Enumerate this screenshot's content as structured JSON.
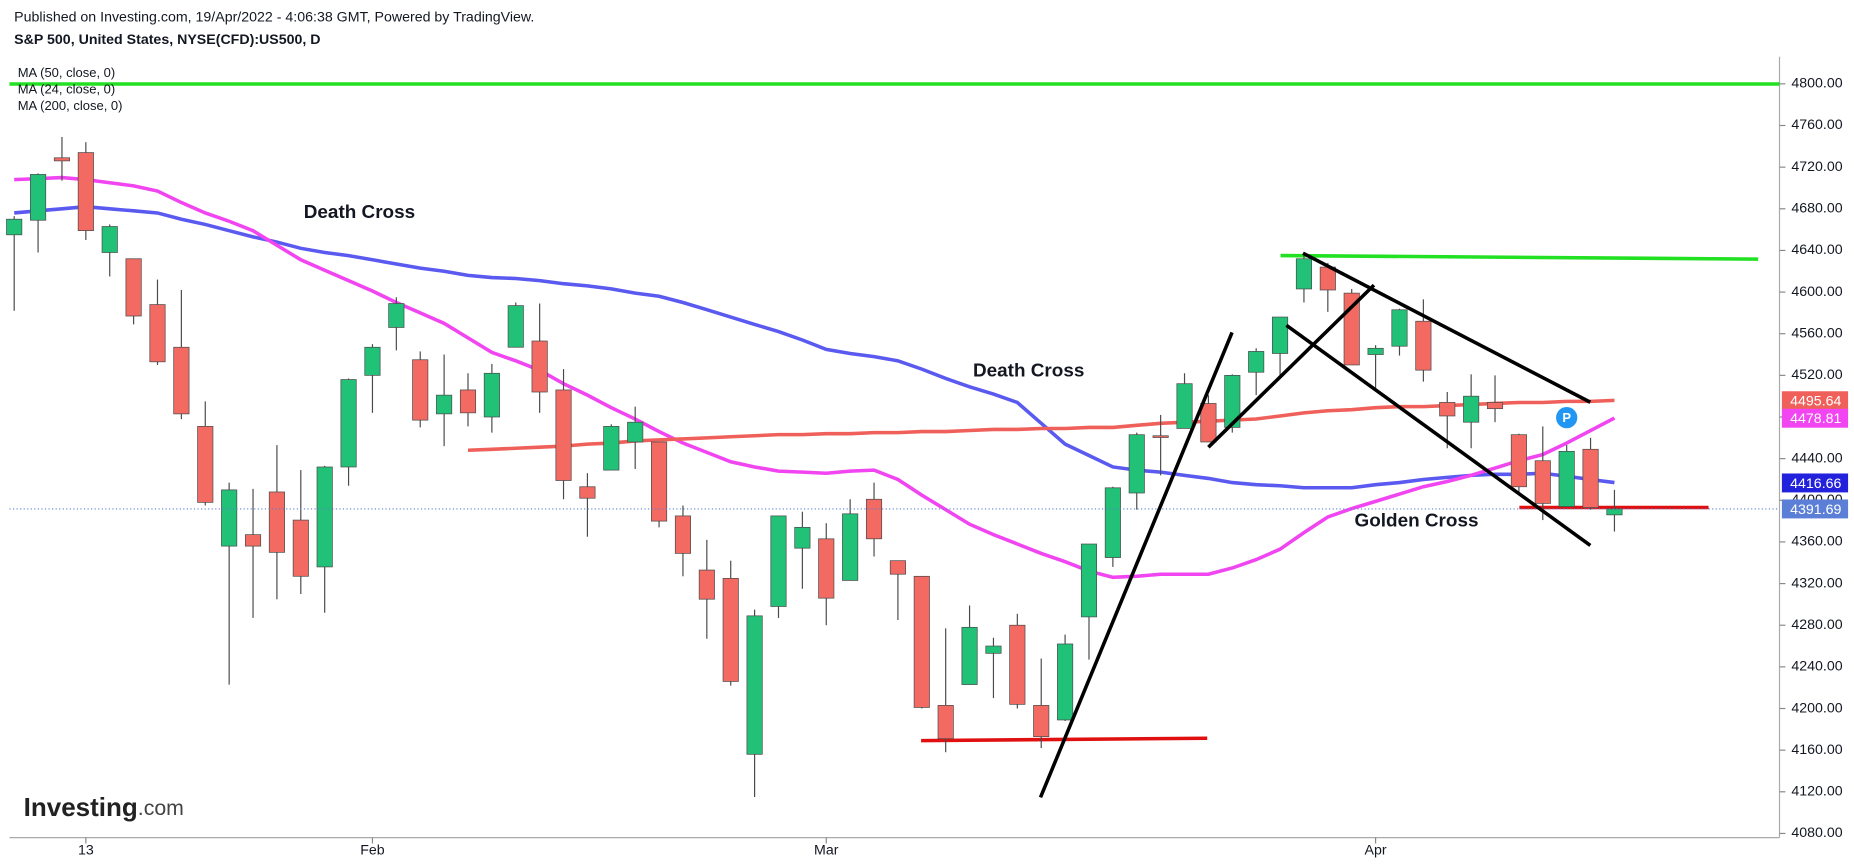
{
  "chart_data": {
    "type": "candlestick",
    "header": {
      "published": "Published on Investing.com, 19/Apr/2022 - 4:06:38 GMT, Powered by TradingView.",
      "symbol": "S&P 500, United States, NYSE(CFD):US500, D"
    },
    "watermark": [
      "Investing",
      ".com"
    ],
    "categories": [
      null,
      null,
      null,
      "13",
      null,
      null,
      null,
      null,
      null,
      null,
      null,
      null,
      null,
      null,
      null,
      "Feb",
      null,
      null,
      null,
      null,
      null,
      null,
      null,
      null,
      null,
      null,
      null,
      null,
      null,
      null,
      null,
      null,
      null,
      null,
      "Mar",
      null,
      null,
      null,
      null,
      null,
      null,
      null,
      null,
      null,
      null,
      null,
      null,
      null,
      null,
      null,
      null,
      null,
      null,
      null,
      null,
      null,
      null,
      "Apr",
      null,
      null,
      null,
      null,
      null,
      null,
      null,
      null,
      null,
      null
    ],
    "open": [
      4655,
      4669,
      4729,
      4734,
      4638,
      4632,
      4588,
      4547,
      4471,
      4356,
      4367,
      4408,
      4381,
      4336,
      4432,
      4520,
      4566,
      4535,
      4483,
      4506,
      4480,
      4547,
      4553,
      4506,
      4413,
      4429,
      4456,
      4456,
      4385,
      4333,
      4325,
      4156,
      4298,
      4354,
      4363,
      4323,
      4401,
      4342,
      4327,
      4203,
      4223,
      4253,
      4280,
      4203,
      4189,
      4288,
      4345,
      4407,
      4462,
      4469,
      4493,
      4470,
      4523,
      4541,
      4603,
      4624,
      4599,
      4540,
      4548,
      4572,
      4494,
      4475,
      4494,
      4463,
      4438,
      4394,
      4449,
      4386
    ],
    "high": [
      4673,
      4714,
      4749,
      4744,
      4665,
      4632,
      4612,
      4602,
      4495,
      4417,
      4411,
      4453,
      4429,
      4433,
      4517,
      4550,
      4595,
      4543,
      4540,
      4522,
      4531,
      4590,
      4589,
      4526,
      4426,
      4473,
      4490,
      4456,
      4395,
      4362,
      4342,
      4295,
      4385,
      4389,
      4378,
      4401,
      4417,
      4342,
      4327,
      4277,
      4299,
      4268,
      4291,
      4248,
      4271,
      4358,
      4413,
      4465,
      4482,
      4522,
      4501,
      4521,
      4546,
      4576,
      4637,
      4628,
      4603,
      4549,
      4584,
      4593,
      4504,
      4521,
      4520,
      4464,
      4471,
      4453,
      4460,
      4410
    ],
    "low": [
      4582,
      4638,
      4707,
      4650,
      4615,
      4569,
      4530,
      4478,
      4395,
      4223,
      4287,
      4305,
      4310,
      4292,
      4414,
      4484,
      4544,
      4470,
      4452,
      4471,
      4465,
      4547,
      4484,
      4401,
      4365,
      4429,
      4430,
      4374,
      4327,
      4267,
      4222,
      4115,
      4287,
      4315,
      4280,
      4323,
      4346,
      4285,
      4200,
      4158,
      4223,
      4210,
      4200,
      4162,
      4188,
      4247,
      4336,
      4391,
      4424,
      4469,
      4456,
      4465,
      4501,
      4518,
      4590,
      4581,
      4530,
      4508,
      4539,
      4514,
      4450,
      4450,
      4475,
      4408,
      4381,
      4394,
      4391,
      4370
    ],
    "close": [
      4670,
      4713,
      4726,
      4659,
      4663,
      4577,
      4533,
      4483,
      4398,
      4410,
      4356,
      4350,
      4327,
      4432,
      4516,
      4547,
      4589,
      4477,
      4501,
      4484,
      4522,
      4587,
      4504,
      4419,
      4402,
      4471,
      4475,
      4380,
      4349,
      4305,
      4226,
      4289,
      4385,
      4374,
      4306,
      4387,
      4363,
      4329,
      4201,
      4171,
      4278,
      4260,
      4204,
      4173,
      4262,
      4358,
      4412,
      4463,
      4461,
      4512,
      4456,
      4520,
      4543,
      4576,
      4632,
      4602,
      4530,
      4546,
      4583,
      4525,
      4481,
      4500,
      4488,
      4413,
      4397,
      4447,
      4393,
      4391.69
    ],
    "up_color": "#22c178",
    "down_color": "#f26a62",
    "wick_color": "#4a4a4a",
    "overlays": [
      {
        "name": "MA (50, close, 0)",
        "color": "#5a5af0",
        "values": [
          4676,
          4678,
          4680,
          4682,
          4680,
          4678,
          4676,
          4670,
          4665,
          4659,
          4653,
          4648,
          4642,
          4638,
          4635,
          4631,
          4627,
          4623,
          4620,
          4616,
          4614,
          4613,
          4611,
          4608,
          4606,
          4603,
          4599,
          4596,
          4590,
          4583,
          4576,
          4569,
          4562,
          4554,
          4545,
          4541,
          4538,
          4534,
          4526,
          4517,
          4509,
          4502,
          4494,
          4474,
          4454,
          4443,
          4432,
          4429,
          4427,
          4424,
          4421,
          4417,
          4415,
          4414,
          4412,
          4412,
          4412,
          4415,
          4417,
          4420,
          4422,
          4424,
          4425,
          4425,
          4426,
          4423,
          4420,
          4417
        ]
      },
      {
        "name": "MA (24, close, 0)",
        "color": "#f045f0",
        "values": [
          4708,
          4709,
          4710,
          4708,
          4705,
          4702,
          4697,
          4686,
          4676,
          4668,
          4659,
          4645,
          4631,
          4621,
          4611,
          4601,
          4590,
          4580,
          4570,
          4556,
          4542,
          4534,
          4525,
          4512,
          4501,
          4489,
          4478,
          4466,
          4455,
          4446,
          4437,
          4432,
          4428,
          4427,
          4426,
          4428,
          4429,
          4420,
          4405,
          4391,
          4377,
          4367,
          4358,
          4349,
          4341,
          4332,
          4326,
          4327,
          4329,
          4329,
          4329,
          4335,
          4343,
          4353,
          4369,
          4384,
          4392,
          4399,
          4406,
          4413,
          4418,
          4424,
          4431,
          4438,
          4444,
          4455,
          4467,
          4479
        ]
      },
      {
        "name": "MA (200, close, 0)",
        "color": "#f0605a",
        "values": [
          null,
          null,
          null,
          null,
          null,
          null,
          null,
          null,
          null,
          null,
          null,
          null,
          null,
          null,
          null,
          null,
          null,
          null,
          null,
          4448,
          4449,
          4450,
          4451,
          4452,
          4454,
          4455,
          4457,
          4458,
          4459,
          4460,
          4461,
          4462,
          4463,
          4463,
          4464,
          4464,
          4465,
          4465,
          4466,
          4466,
          4467,
          4468,
          4468,
          4469,
          4469,
          4470,
          4470,
          4472,
          4474,
          4475,
          4476,
          4477,
          4478,
          4481,
          4484,
          4486,
          4487,
          4489,
          4490,
          4490,
          4491,
          4492,
          4493,
          4494,
          4494,
          4495,
          4495,
          4496
        ]
      }
    ],
    "price_labels": [
      {
        "value": 4495.64,
        "color": "#f0605a"
      },
      {
        "value": 4478.81,
        "color": "#f045f0"
      },
      {
        "value": 4416.66,
        "color": "#2222dd"
      },
      {
        "value": 4391.69,
        "color": "#5b7fd6",
        "line": "dotted"
      }
    ],
    "ylim": [
      4076,
      4826
    ],
    "yticks": [
      {
        "value": 4080,
        "label": "4080.00"
      },
      {
        "value": 4120,
        "label": "4120.00"
      },
      {
        "value": 4160,
        "label": "4160.00"
      },
      {
        "value": 4200,
        "label": "4200.00"
      },
      {
        "value": 4240,
        "label": "4240.00"
      },
      {
        "value": 4280,
        "label": "4280.00"
      },
      {
        "value": 4320,
        "label": "4320.00"
      },
      {
        "value": 4360,
        "label": "4360.00"
      },
      {
        "value": 4400,
        "label": "4400.00"
      },
      {
        "value": 4440,
        "label": "4440.00"
      },
      {
        "value": 4480,
        "label": "4480.00"
      },
      {
        "value": 4520,
        "label": "4520.00"
      },
      {
        "value": 4560,
        "label": "4560.00"
      },
      {
        "value": 4600,
        "label": "4600.00"
      },
      {
        "value": 4640,
        "label": "4640.00"
      },
      {
        "value": 4680,
        "label": "4680.00"
      },
      {
        "value": 4720,
        "label": "4720.00"
      },
      {
        "value": 4760,
        "label": "4760.00"
      },
      {
        "value": 4800,
        "label": "4800.00"
      }
    ],
    "annotations": [
      "Death Cross",
      "Death Cross",
      "Golden Cross"
    ],
    "marker_label": "P"
  }
}
